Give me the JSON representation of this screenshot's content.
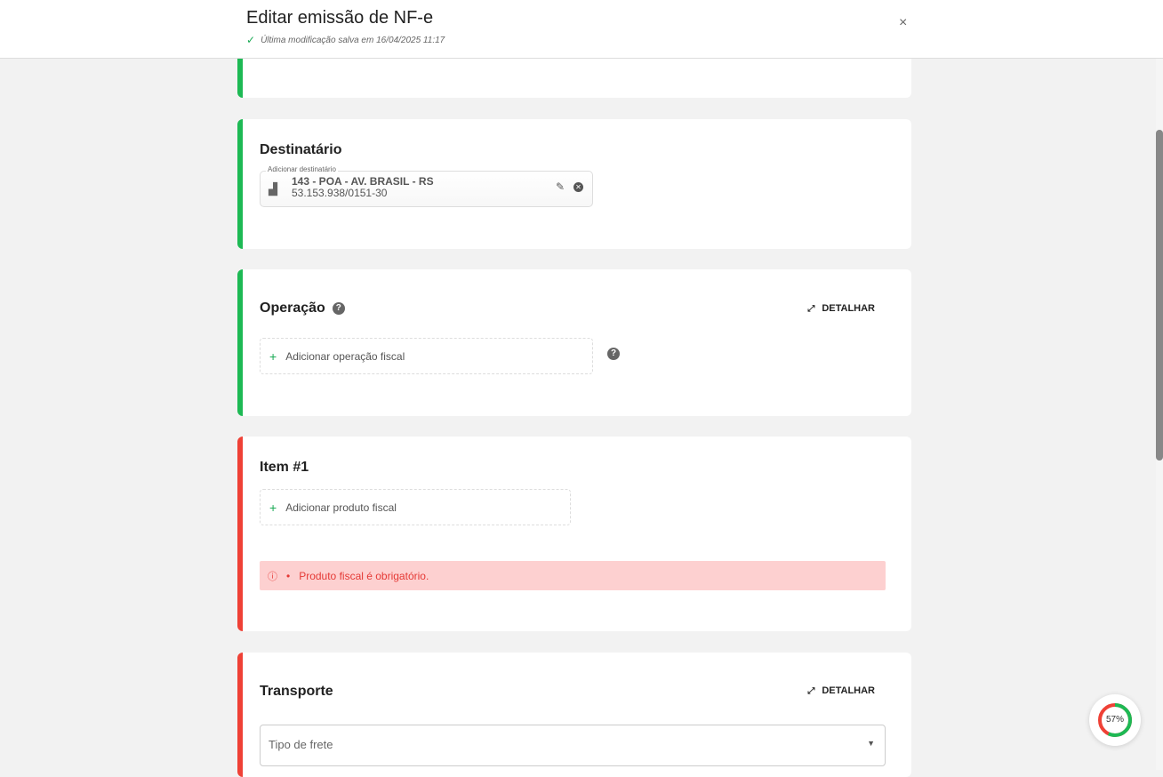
{
  "header": {
    "title": "Editar emissão de NF-e",
    "saved": "Última modificação salva em 16/04/2025 11:17",
    "close": "×"
  },
  "destinatario": {
    "title": "Destinatário",
    "field_label": "Adicionar destinatário",
    "name": "143 - POA - AV. BRASIL - RS",
    "cnpj": "53.153.938/0151-30"
  },
  "operacao": {
    "title": "Operação",
    "detail": "DETALHAR",
    "add": "Adicionar operação fiscal"
  },
  "item": {
    "title": "Item #1",
    "add": "Adicionar produto fiscal",
    "error": "Produto fiscal é obrigatório."
  },
  "transporte": {
    "title": "Transporte",
    "detail": "DETALHAR",
    "frete_placeholder": "Tipo de frete"
  },
  "progress": {
    "label": "57%",
    "value": 57,
    "colors": {
      "done": "#1db954",
      "todo": "#ef4136"
    }
  }
}
